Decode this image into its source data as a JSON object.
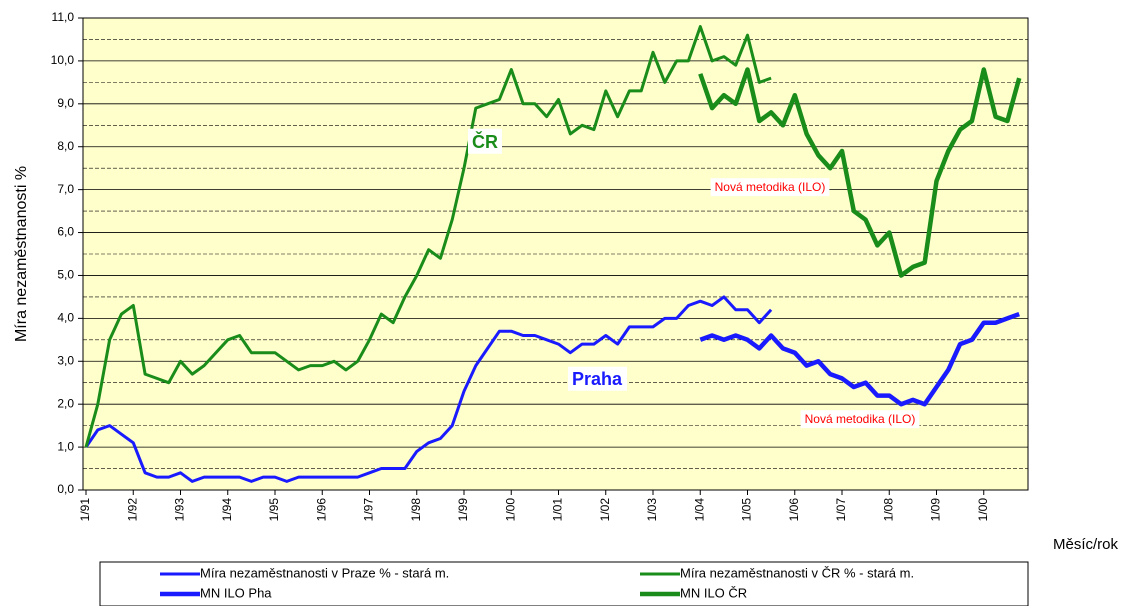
{
  "chart_data": {
    "type": "line",
    "ylabel": "Míra nezaměstnanosti %",
    "xlabel": "Měsíc/rok",
    "annotations": [
      "ČR",
      "Praha",
      "Nová metodika (ILO)",
      "Nová metodika (ILO)"
    ],
    "categories": [
      "1/91",
      null,
      null,
      null,
      "1/92",
      null,
      null,
      null,
      "1/93",
      null,
      null,
      null,
      "1/94",
      null,
      null,
      null,
      "1/95",
      null,
      null,
      null,
      "1/96",
      null,
      null,
      null,
      "1/97",
      null,
      null,
      null,
      "1/98",
      null,
      null,
      null,
      "1/99",
      null,
      null,
      null,
      "1/00",
      null,
      null,
      null,
      "1/01",
      null,
      null,
      null,
      "1/02",
      null,
      null,
      null,
      "1/03",
      null,
      null,
      null,
      "1/04",
      null,
      null,
      null,
      "1/05",
      null,
      null,
      null,
      "1/06",
      null,
      null,
      null,
      "1/07",
      null,
      null,
      null,
      "1/08",
      null,
      null,
      null,
      "1/09",
      null,
      null,
      null,
      "1/00",
      null,
      null,
      null
    ],
    "series": [
      {
        "name": "Míra nezaměstnanosti v Praze % - stará m.",
        "color": "#1a1aff",
        "width": 3,
        "values": [
          1.0,
          1.4,
          1.5,
          1.3,
          1.1,
          0.4,
          0.3,
          0.3,
          0.4,
          0.2,
          0.3,
          0.3,
          0.3,
          0.3,
          0.2,
          0.3,
          0.3,
          0.2,
          0.3,
          0.3,
          0.3,
          0.3,
          0.3,
          0.3,
          0.4,
          0.5,
          0.5,
          0.5,
          0.9,
          1.1,
          1.2,
          1.5,
          2.3,
          2.9,
          3.3,
          3.7,
          3.7,
          3.6,
          3.6,
          3.5,
          3.4,
          3.2,
          3.4,
          3.4,
          3.6,
          3.4,
          3.8,
          3.8,
          3.8,
          4.0,
          4.0,
          4.3,
          4.4,
          4.3,
          4.5,
          4.2,
          4.2,
          3.9,
          4.2,
          null,
          null,
          null,
          null,
          null,
          null,
          null,
          null,
          null,
          null,
          null,
          null,
          null,
          null,
          null,
          null,
          null,
          null,
          null,
          null,
          null
        ]
      },
      {
        "name": "Míra nezaměstnanosti v ČR % - stará m.",
        "color": "#1a8c1a",
        "width": 3,
        "values": [
          1.0,
          2.0,
          3.5,
          4.1,
          4.3,
          2.7,
          2.6,
          2.5,
          3.0,
          2.7,
          2.9,
          3.2,
          3.5,
          3.6,
          3.2,
          3.2,
          3.2,
          3.0,
          2.8,
          2.9,
          2.9,
          3.0,
          2.8,
          3.0,
          3.5,
          4.1,
          3.9,
          4.5,
          5.0,
          5.6,
          5.4,
          6.3,
          7.5,
          8.9,
          9.0,
          9.1,
          9.8,
          9.0,
          9.0,
          8.7,
          9.1,
          8.3,
          8.5,
          8.4,
          9.3,
          8.7,
          9.3,
          9.3,
          10.2,
          9.5,
          10.0,
          10.0,
          10.8,
          10.0,
          10.1,
          9.9,
          10.6,
          9.5,
          9.6,
          null,
          null,
          null,
          null,
          null,
          null,
          null,
          null,
          null,
          null,
          null,
          null,
          null,
          null,
          null,
          null,
          null,
          null,
          null,
          null,
          null
        ]
      },
      {
        "name": "MN ILO Pha",
        "color": "#1a1aff",
        "width": 4.5,
        "values": [
          null,
          null,
          null,
          null,
          null,
          null,
          null,
          null,
          null,
          null,
          null,
          null,
          null,
          null,
          null,
          null,
          null,
          null,
          null,
          null,
          null,
          null,
          null,
          null,
          null,
          null,
          null,
          null,
          null,
          null,
          null,
          null,
          null,
          null,
          null,
          null,
          null,
          null,
          null,
          null,
          null,
          null,
          null,
          null,
          null,
          null,
          null,
          null,
          null,
          null,
          null,
          null,
          3.5,
          3.6,
          3.5,
          3.6,
          3.5,
          3.3,
          3.6,
          3.3,
          3.2,
          2.9,
          3.0,
          2.7,
          2.6,
          2.4,
          2.5,
          2.2,
          2.2,
          2.0,
          2.1,
          2.0,
          2.4,
          2.8,
          3.4,
          3.5,
          3.9,
          3.9,
          4.0,
          4.1
        ]
      },
      {
        "name": "MN ILO ČR",
        "color": "#1a8c1a",
        "width": 4.5,
        "values": [
          null,
          null,
          null,
          null,
          null,
          null,
          null,
          null,
          null,
          null,
          null,
          null,
          null,
          null,
          null,
          null,
          null,
          null,
          null,
          null,
          null,
          null,
          null,
          null,
          null,
          null,
          null,
          null,
          null,
          null,
          null,
          null,
          null,
          null,
          null,
          null,
          null,
          null,
          null,
          null,
          null,
          null,
          null,
          null,
          null,
          null,
          null,
          null,
          null,
          null,
          null,
          null,
          9.7,
          8.9,
          9.2,
          9.0,
          9.8,
          8.6,
          8.8,
          8.5,
          9.2,
          8.3,
          7.8,
          7.5,
          7.9,
          6.5,
          6.3,
          5.7,
          6.0,
          5.0,
          5.2,
          5.3,
          7.2,
          7.9,
          8.4,
          8.6,
          9.8,
          8.7,
          8.6,
          9.6
        ]
      }
    ],
    "ylim": [
      0,
      11
    ],
    "yticks": [
      {
        "value": 0,
        "label": "0,0"
      },
      {
        "value": 1,
        "label": "1,0"
      },
      {
        "value": 2,
        "label": "2,0"
      },
      {
        "value": 3,
        "label": "3,0"
      },
      {
        "value": 4,
        "label": "4,0"
      },
      {
        "value": 5,
        "label": "5,0"
      },
      {
        "value": 6,
        "label": "6,0"
      },
      {
        "value": 7,
        "label": "7,0"
      },
      {
        "value": 8,
        "label": "8,0"
      },
      {
        "value": 9,
        "label": "9,0"
      },
      {
        "value": 10,
        "label": "10,0"
      },
      {
        "value": 11,
        "label": "11,0"
      }
    ],
    "minor_yticks": [
      0.5,
      1.5,
      2.5,
      3.5,
      4.5,
      5.5,
      6.5,
      7.5,
      8.5,
      9.5,
      10.5
    ],
    "grid": true,
    "background": "#ffffcc"
  }
}
